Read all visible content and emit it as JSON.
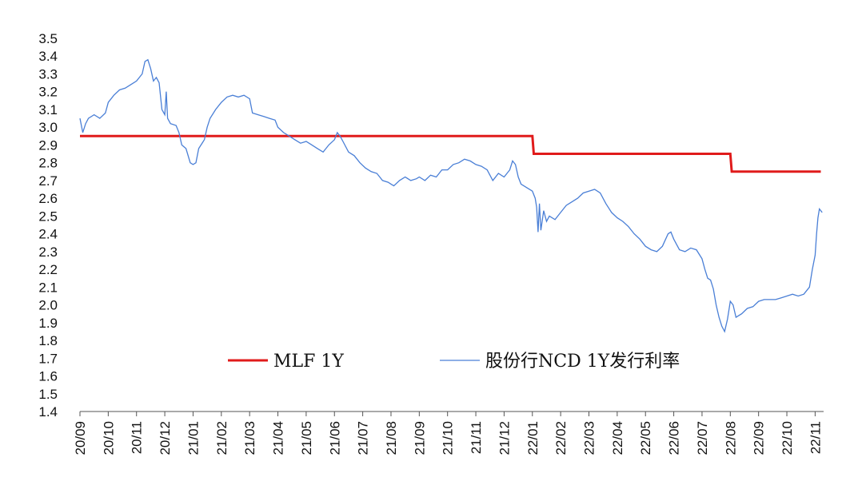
{
  "chart_data": {
    "type": "line",
    "title": "",
    "xlabel": "",
    "ylabel": "",
    "ylim": [
      1.4,
      3.5
    ],
    "y_ticks": [
      "3.5",
      "3.4",
      "3.3",
      "3.2",
      "3.1",
      "3.0",
      "2.9",
      "2.8",
      "2.7",
      "2.6",
      "2.5",
      "2.4",
      "2.3",
      "2.2",
      "2.1",
      "2.0",
      "1.9",
      "1.8",
      "1.7",
      "1.6",
      "1.5",
      "1.4"
    ],
    "x_ticks": [
      "20/09",
      "20/10",
      "20/11",
      "20/12",
      "21/01",
      "21/02",
      "21/03",
      "21/04",
      "21/05",
      "21/06",
      "21/07",
      "21/08",
      "21/09",
      "21/10",
      "21/11",
      "21/12",
      "22/01",
      "22/02",
      "22/03",
      "22/04",
      "22/05",
      "22/06",
      "22/07",
      "22/08",
      "22/09",
      "22/10",
      "22/11"
    ],
    "xlim": [
      0,
      26.3
    ],
    "grid": false,
    "legend_position": "inside-bottom-center",
    "series": [
      {
        "name": "MLF 1Y",
        "color": "#e01b1b",
        "points": [
          [
            0,
            2.95
          ],
          [
            16.0,
            2.95
          ],
          [
            16.05,
            2.85
          ],
          [
            23.0,
            2.85
          ],
          [
            23.05,
            2.75
          ],
          [
            26.2,
            2.75
          ]
        ]
      },
      {
        "name": "股份行NCD 1Y发行利率",
        "color": "#4a7fd6",
        "points": [
          [
            0.0,
            3.05
          ],
          [
            0.1,
            2.97
          ],
          [
            0.2,
            3.02
          ],
          [
            0.3,
            3.05
          ],
          [
            0.5,
            3.07
          ],
          [
            0.7,
            3.05
          ],
          [
            0.9,
            3.08
          ],
          [
            1.0,
            3.14
          ],
          [
            1.2,
            3.18
          ],
          [
            1.4,
            3.21
          ],
          [
            1.6,
            3.22
          ],
          [
            1.8,
            3.24
          ],
          [
            2.0,
            3.26
          ],
          [
            2.2,
            3.3
          ],
          [
            2.3,
            3.37
          ],
          [
            2.4,
            3.38
          ],
          [
            2.5,
            3.33
          ],
          [
            2.6,
            3.26
          ],
          [
            2.7,
            3.28
          ],
          [
            2.8,
            3.25
          ],
          [
            2.9,
            3.1
          ],
          [
            3.0,
            3.07
          ],
          [
            3.05,
            3.2
          ],
          [
            3.1,
            3.05
          ],
          [
            3.2,
            3.02
          ],
          [
            3.4,
            3.01
          ],
          [
            3.5,
            2.97
          ],
          [
            3.6,
            2.9
          ],
          [
            3.75,
            2.88
          ],
          [
            3.9,
            2.8
          ],
          [
            4.0,
            2.79
          ],
          [
            4.1,
            2.8
          ],
          [
            4.2,
            2.88
          ],
          [
            4.4,
            2.93
          ],
          [
            4.5,
            3.0
          ],
          [
            4.6,
            3.05
          ],
          [
            4.8,
            3.1
          ],
          [
            5.0,
            3.14
          ],
          [
            5.2,
            3.17
          ],
          [
            5.4,
            3.18
          ],
          [
            5.6,
            3.17
          ],
          [
            5.8,
            3.18
          ],
          [
            6.0,
            3.16
          ],
          [
            6.1,
            3.08
          ],
          [
            6.3,
            3.07
          ],
          [
            6.5,
            3.06
          ],
          [
            6.7,
            3.05
          ],
          [
            6.9,
            3.04
          ],
          [
            7.0,
            3.0
          ],
          [
            7.2,
            2.97
          ],
          [
            7.4,
            2.95
          ],
          [
            7.6,
            2.93
          ],
          [
            7.8,
            2.91
          ],
          [
            8.0,
            2.92
          ],
          [
            8.2,
            2.9
          ],
          [
            8.4,
            2.88
          ],
          [
            8.6,
            2.86
          ],
          [
            8.8,
            2.9
          ],
          [
            9.0,
            2.93
          ],
          [
            9.1,
            2.97
          ],
          [
            9.2,
            2.95
          ],
          [
            9.3,
            2.92
          ],
          [
            9.5,
            2.86
          ],
          [
            9.7,
            2.84
          ],
          [
            9.9,
            2.8
          ],
          [
            10.1,
            2.77
          ],
          [
            10.3,
            2.75
          ],
          [
            10.5,
            2.74
          ],
          [
            10.7,
            2.7
          ],
          [
            10.9,
            2.69
          ],
          [
            11.0,
            2.68
          ],
          [
            11.1,
            2.67
          ],
          [
            11.3,
            2.7
          ],
          [
            11.5,
            2.72
          ],
          [
            11.7,
            2.7
          ],
          [
            11.9,
            2.71
          ],
          [
            12.0,
            2.72
          ],
          [
            12.2,
            2.7
          ],
          [
            12.4,
            2.73
          ],
          [
            12.6,
            2.72
          ],
          [
            12.8,
            2.76
          ],
          [
            13.0,
            2.76
          ],
          [
            13.2,
            2.79
          ],
          [
            13.4,
            2.8
          ],
          [
            13.6,
            2.82
          ],
          [
            13.8,
            2.81
          ],
          [
            14.0,
            2.79
          ],
          [
            14.2,
            2.78
          ],
          [
            14.4,
            2.76
          ],
          [
            14.6,
            2.7
          ],
          [
            14.8,
            2.74
          ],
          [
            15.0,
            2.72
          ],
          [
            15.2,
            2.76
          ],
          [
            15.3,
            2.81
          ],
          [
            15.4,
            2.79
          ],
          [
            15.5,
            2.72
          ],
          [
            15.6,
            2.68
          ],
          [
            15.8,
            2.66
          ],
          [
            16.0,
            2.64
          ],
          [
            16.1,
            2.6
          ],
          [
            16.15,
            2.55
          ],
          [
            16.2,
            2.41
          ],
          [
            16.25,
            2.57
          ],
          [
            16.3,
            2.42
          ],
          [
            16.4,
            2.53
          ],
          [
            16.5,
            2.47
          ],
          [
            16.6,
            2.5
          ],
          [
            16.8,
            2.48
          ],
          [
            17.0,
            2.52
          ],
          [
            17.2,
            2.56
          ],
          [
            17.4,
            2.58
          ],
          [
            17.6,
            2.6
          ],
          [
            17.8,
            2.63
          ],
          [
            18.0,
            2.64
          ],
          [
            18.2,
            2.65
          ],
          [
            18.4,
            2.63
          ],
          [
            18.6,
            2.57
          ],
          [
            18.8,
            2.52
          ],
          [
            19.0,
            2.49
          ],
          [
            19.2,
            2.47
          ],
          [
            19.4,
            2.44
          ],
          [
            19.6,
            2.4
          ],
          [
            19.8,
            2.37
          ],
          [
            20.0,
            2.33
          ],
          [
            20.2,
            2.31
          ],
          [
            20.4,
            2.3
          ],
          [
            20.6,
            2.33
          ],
          [
            20.8,
            2.4
          ],
          [
            20.9,
            2.41
          ],
          [
            21.0,
            2.37
          ],
          [
            21.2,
            2.31
          ],
          [
            21.4,
            2.3
          ],
          [
            21.6,
            2.32
          ],
          [
            21.8,
            2.31
          ],
          [
            22.0,
            2.26
          ],
          [
            22.1,
            2.2
          ],
          [
            22.2,
            2.15
          ],
          [
            22.3,
            2.14
          ],
          [
            22.4,
            2.09
          ],
          [
            22.5,
            2.0
          ],
          [
            22.6,
            1.93
          ],
          [
            22.7,
            1.88
          ],
          [
            22.8,
            1.85
          ],
          [
            22.9,
            1.92
          ],
          [
            23.0,
            2.02
          ],
          [
            23.1,
            2.0
          ],
          [
            23.2,
            1.93
          ],
          [
            23.4,
            1.95
          ],
          [
            23.6,
            1.98
          ],
          [
            23.8,
            1.99
          ],
          [
            24.0,
            2.02
          ],
          [
            24.2,
            2.03
          ],
          [
            24.4,
            2.03
          ],
          [
            24.6,
            2.03
          ],
          [
            24.8,
            2.04
          ],
          [
            25.0,
            2.05
          ],
          [
            25.2,
            2.06
          ],
          [
            25.4,
            2.05
          ],
          [
            25.6,
            2.06
          ],
          [
            25.8,
            2.1
          ],
          [
            25.9,
            2.2
          ],
          [
            26.0,
            2.28
          ],
          [
            26.05,
            2.4
          ],
          [
            26.1,
            2.49
          ],
          [
            26.15,
            2.54
          ],
          [
            26.2,
            2.53
          ],
          [
            26.25,
            2.52
          ]
        ]
      }
    ]
  }
}
